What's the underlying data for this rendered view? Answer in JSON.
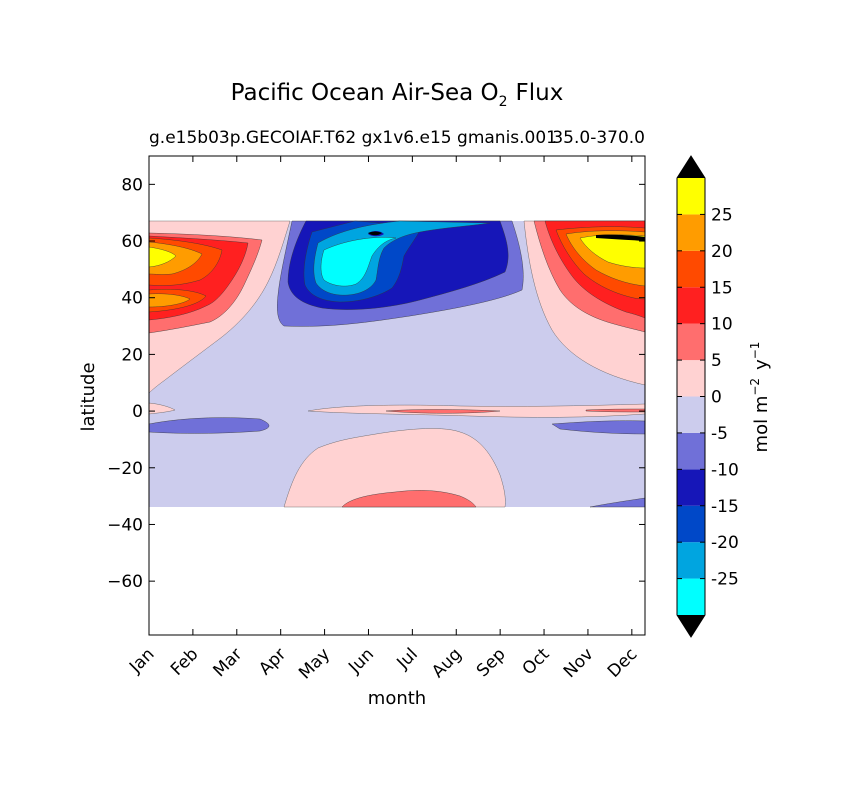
{
  "chart_data": {
    "type": "heatmap",
    "title": "Pacific Ocean Air-Sea O",
    "title_sub": "2",
    "title_suffix": "Flux",
    "subtitle_left": "g.e15b03p.GECOIAF.T62 gx1v6.e15 gmanis.001",
    "subtitle_right": "35.0-370.0",
    "xlabel": "month",
    "ylabel": "latitude",
    "x_ticks": [
      "Jan",
      "Feb",
      "Mar",
      "Apr",
      "May",
      "Jun",
      "Jul",
      "Aug",
      "Sep",
      "Oct",
      "Nov",
      "Dec"
    ],
    "y_ticks": [
      80,
      60,
      40,
      20,
      0,
      -20,
      -40,
      -60
    ],
    "y_tick_labels": [
      "80",
      "60",
      "40",
      "20",
      "0",
      "−20",
      "−40",
      "−60"
    ],
    "xlim": [
      0,
      11.3
    ],
    "ylim": [
      -79,
      90
    ],
    "data_lat_range": [
      -34,
      67
    ],
    "colorbar": {
      "label": "mol m",
      "label_sup1": "−2",
      "label_mid": "y",
      "label_sup2": "−1",
      "levels": [
        -30,
        -25,
        -20,
        -15,
        -10,
        -5,
        0,
        5,
        10,
        15,
        20,
        25,
        30
      ],
      "tick_labels": [
        "-25",
        "-20",
        "-15",
        "-10",
        "-5",
        "0",
        "5",
        "10",
        "15",
        "20",
        "25"
      ],
      "colors": [
        "#00ffff",
        "#00a5e0",
        "#0048c8",
        "#1616b8",
        "#7070d8",
        "#cccced",
        "#ffd2d2",
        "#ff6e6e",
        "#ff2020",
        "#ff4a00",
        "#ff9c00",
        "#ffff00"
      ],
      "extend": "both",
      "extend_color": "#000000"
    }
  }
}
